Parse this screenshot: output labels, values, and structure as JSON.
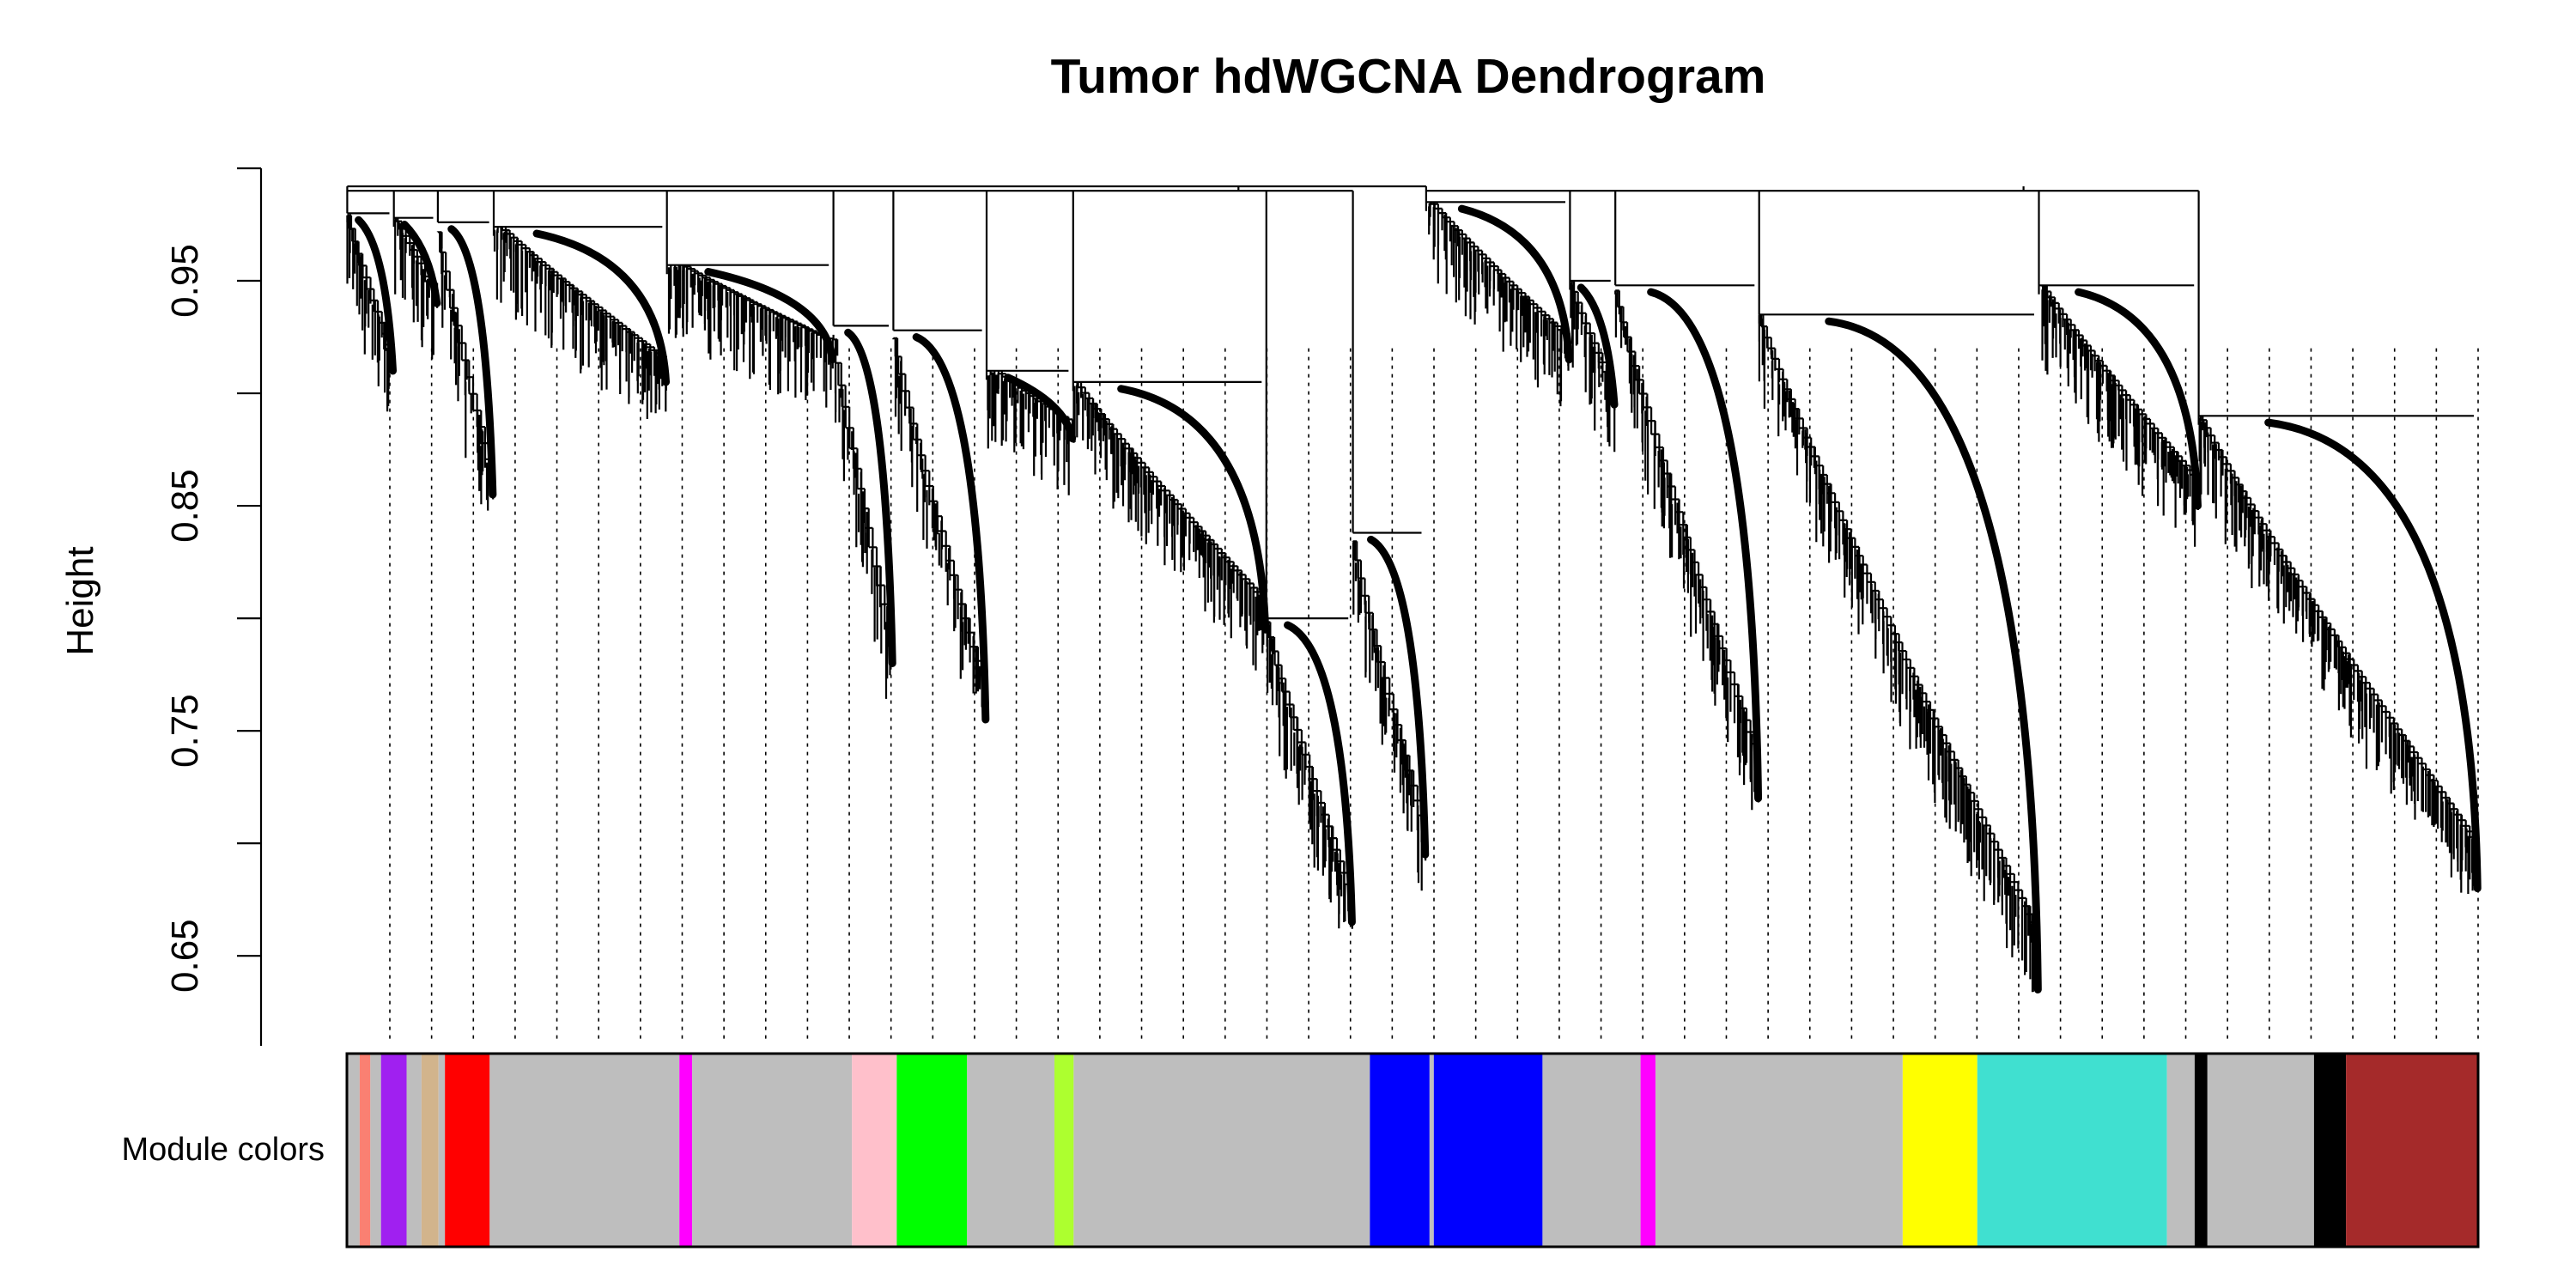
{
  "chart_data": {
    "type": "dendrogram",
    "title": "Tumor hdWGCNA Dendrogram",
    "ylabel": "Height",
    "ylim": [
      0.61,
      1.0
    ],
    "y_ticks": [
      0.65,
      0.75,
      0.85,
      0.95
    ],
    "y_tick_labels": [
      "0.65",
      "0.75",
      "0.85",
      "0.95"
    ],
    "band_label": "Module colors",
    "n_leaves": 2000,
    "root_height": 0.992,
    "clusters": [
      {
        "start": 0.0,
        "end": 0.035,
        "join": 0.98,
        "min": 0.91
      },
      {
        "start": 0.035,
        "end": 0.068,
        "join": 0.978,
        "min": 0.94
      },
      {
        "start": 0.068,
        "end": 0.11,
        "join": 0.976,
        "min": 0.855
      },
      {
        "start": 0.11,
        "end": 0.24,
        "join": 0.974,
        "min": 0.905
      },
      {
        "start": 0.24,
        "end": 0.365,
        "join": 0.957,
        "min": 0.915
      },
      {
        "start": 0.365,
        "end": 0.41,
        "join": 0.93,
        "min": 0.78
      },
      {
        "start": 0.41,
        "end": 0.48,
        "join": 0.928,
        "min": 0.755
      },
      {
        "start": 0.48,
        "end": 0.545,
        "join": 0.91,
        "min": 0.88
      },
      {
        "start": 0.545,
        "end": 0.69,
        "join": 0.905,
        "min": 0.795
      },
      {
        "start": 0.69,
        "end": 0.755,
        "join": 0.8,
        "min": 0.665
      },
      {
        "start": 0.755,
        "end": 0.81,
        "join": 0.838,
        "min": 0.695
      },
      {
        "start": 0.81,
        "end": 0.918,
        "join": 0.985,
        "min": 0.915
      },
      {
        "start": 0.918,
        "end": 0.952,
        "join": 0.95,
        "min": 0.895
      },
      {
        "start": 0.952,
        "end": 1.06,
        "join": 0.948,
        "min": 0.72
      },
      {
        "start": 1.06,
        "end": 1.27,
        "join": 0.935,
        "min": 0.635
      },
      {
        "start": 1.27,
        "end": 1.39,
        "join": 0.948,
        "min": 0.85
      },
      {
        "start": 1.39,
        "end": 1.6,
        "join": 0.89,
        "min": 0.68
      }
    ],
    "module_colors": [
      {
        "start": 0.0,
        "end": 0.006,
        "color": "#bebebe"
      },
      {
        "start": 0.006,
        "end": 0.011,
        "color": "#fa8072"
      },
      {
        "start": 0.011,
        "end": 0.016,
        "color": "#bebebe"
      },
      {
        "start": 0.016,
        "end": 0.028,
        "color": "#a020f0"
      },
      {
        "start": 0.028,
        "end": 0.035,
        "color": "#bebebe"
      },
      {
        "start": 0.035,
        "end": 0.043,
        "color": "#d2b48c"
      },
      {
        "start": 0.043,
        "end": 0.046,
        "color": "#bebebe"
      },
      {
        "start": 0.046,
        "end": 0.067,
        "color": "#ff0000"
      },
      {
        "start": 0.067,
        "end": 0.156,
        "color": "#bebebe"
      },
      {
        "start": 0.156,
        "end": 0.162,
        "color": "#ff00ff"
      },
      {
        "start": 0.162,
        "end": 0.237,
        "color": "#bebebe"
      },
      {
        "start": 0.237,
        "end": 0.258,
        "color": "#ffc0cb"
      },
      {
        "start": 0.258,
        "end": 0.291,
        "color": "#00ff00"
      },
      {
        "start": 0.291,
        "end": 0.332,
        "color": "#bebebe"
      },
      {
        "start": 0.332,
        "end": 0.341,
        "color": "#adff2f"
      },
      {
        "start": 0.341,
        "end": 0.48,
        "color": "#bebebe"
      },
      {
        "start": 0.48,
        "end": 0.508,
        "color": "#0000ff"
      },
      {
        "start": 0.508,
        "end": 0.51,
        "color": "#bebebe"
      },
      {
        "start": 0.51,
        "end": 0.561,
        "color": "#0000ff"
      },
      {
        "start": 0.561,
        "end": 0.607,
        "color": "#bebebe"
      },
      {
        "start": 0.607,
        "end": 0.614,
        "color": "#ff00ff"
      },
      {
        "start": 0.614,
        "end": 0.73,
        "color": "#bebebe"
      },
      {
        "start": 0.73,
        "end": 0.765,
        "color": "#ffff00"
      },
      {
        "start": 0.765,
        "end": 0.854,
        "color": "#40e0d0"
      },
      {
        "start": 0.854,
        "end": 0.867,
        "color": "#bebebe"
      },
      {
        "start": 0.867,
        "end": 0.873,
        "color": "#000000"
      },
      {
        "start": 0.873,
        "end": 0.923,
        "color": "#bebebe"
      },
      {
        "start": 0.923,
        "end": 0.938,
        "color": "#000000"
      },
      {
        "start": 0.938,
        "end": 1.0,
        "color": "#a52a2a"
      }
    ]
  }
}
